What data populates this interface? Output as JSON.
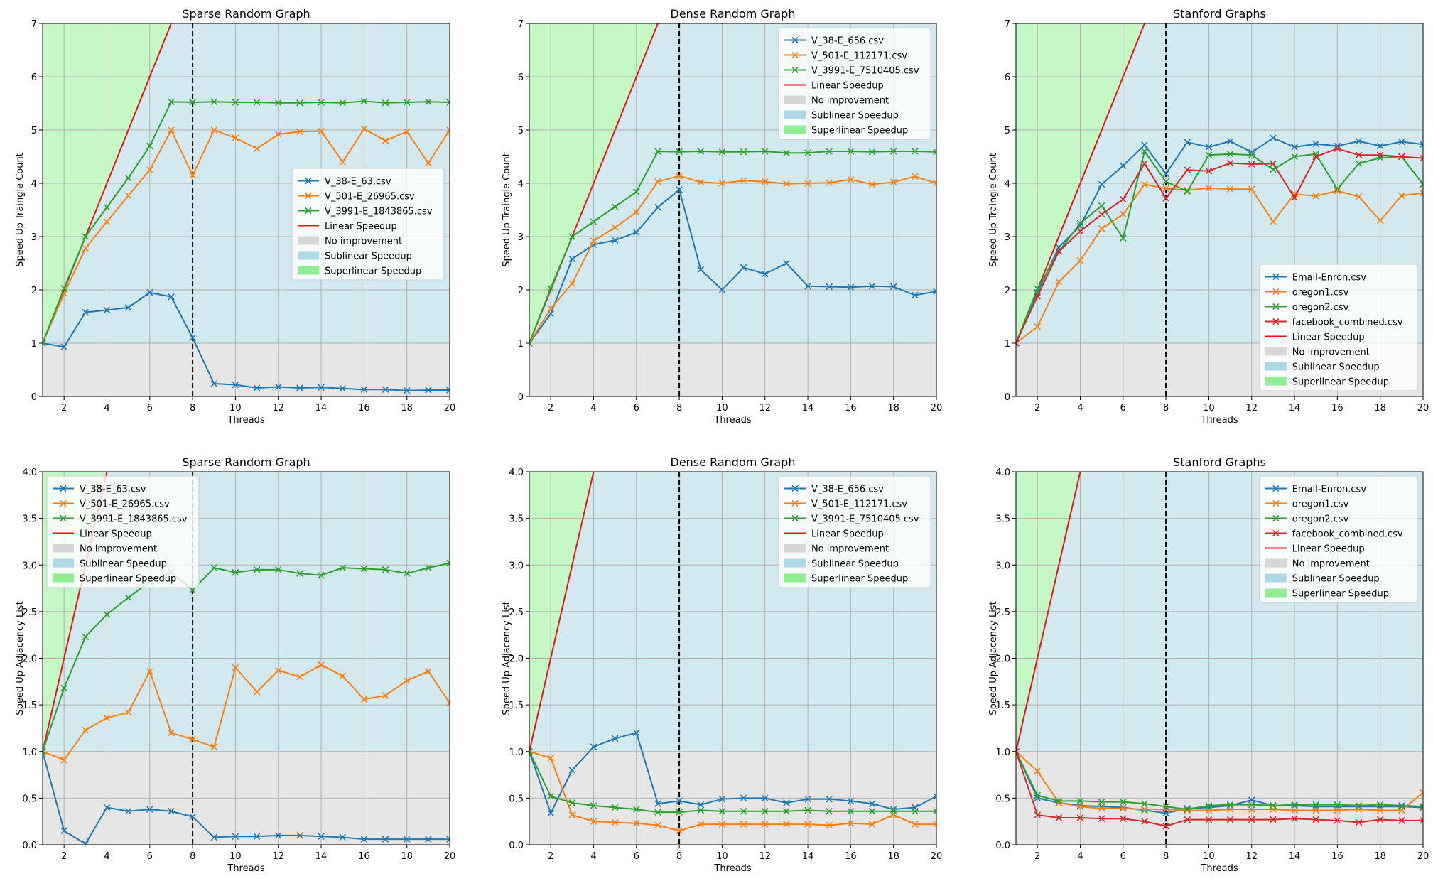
{
  "colors": {
    "c0": "#1f77b4",
    "c1": "#ff7f0e",
    "c2": "#2ca02c",
    "c3": "#d62728",
    "linear": "#e8160e",
    "no_improvement": "#e6e6e6",
    "sublinear": "#d3e9f0",
    "superlinear": "#c6f7c6",
    "grid": "#b0b0b0",
    "vline": "#000000"
  },
  "legend_labels": {
    "linear": "Linear Speedup",
    "no_improvement": "No improvement",
    "sublinear": "Sublinear Speedup",
    "superlinear": "Superlinear Speedup"
  },
  "chart_data": [
    {
      "type": "line",
      "title": "Sparse Random Graph",
      "xlabel": "Threads",
      "ylabel": "Speed Up Traingle Count",
      "xlim": [
        1,
        20
      ],
      "ylim": [
        0,
        7
      ],
      "xticks": [
        2,
        4,
        6,
        8,
        10,
        12,
        14,
        16,
        18,
        20
      ],
      "yticks": [
        0,
        1,
        2,
        3,
        4,
        5,
        6,
        7
      ],
      "ytick_labels": [
        "0",
        "1",
        "2",
        "3",
        "4",
        "5",
        "6",
        "7"
      ],
      "vline_x": 8,
      "legend": "center-right",
      "x": [
        1,
        2,
        3,
        4,
        5,
        6,
        7,
        8,
        9,
        10,
        11,
        12,
        13,
        14,
        15,
        16,
        17,
        18,
        19,
        20
      ],
      "series": [
        {
          "name": "V_38-E_63.csv",
          "values": [
            1.0,
            0.93,
            1.58,
            1.62,
            1.67,
            1.95,
            1.87,
            1.1,
            0.24,
            0.22,
            0.16,
            0.18,
            0.16,
            0.17,
            0.15,
            0.13,
            0.13,
            0.11,
            0.12,
            0.12
          ]
        },
        {
          "name": "V_501-E_26965.csv",
          "values": [
            1.0,
            1.93,
            2.78,
            3.28,
            3.77,
            4.25,
            5.0,
            4.15,
            5.0,
            4.85,
            4.65,
            4.92,
            4.97,
            4.98,
            4.4,
            5.02,
            4.8,
            4.97,
            4.38,
            5.0
          ]
        },
        {
          "name": "V_3991-E_1843865.csv",
          "values": [
            1.0,
            2.03,
            3.0,
            3.55,
            4.1,
            4.7,
            5.53,
            5.52,
            5.53,
            5.52,
            5.52,
            5.51,
            5.51,
            5.52,
            5.51,
            5.54,
            5.51,
            5.52,
            5.53,
            5.52
          ]
        }
      ]
    },
    {
      "type": "line",
      "title": "Dense Random Graph",
      "xlabel": "Threads",
      "ylabel": "Speed Up Traingle Count",
      "xlim": [
        1,
        20
      ],
      "ylim": [
        0,
        7
      ],
      "xticks": [
        2,
        4,
        6,
        8,
        10,
        12,
        14,
        16,
        18,
        20
      ],
      "yticks": [
        0,
        1,
        2,
        3,
        4,
        5,
        6,
        7
      ],
      "ytick_labels": [
        "0",
        "1",
        "2",
        "3",
        "4",
        "5",
        "6",
        "7"
      ],
      "vline_x": 8,
      "legend": "top-right",
      "x": [
        1,
        2,
        3,
        4,
        5,
        6,
        7,
        8,
        9,
        10,
        11,
        12,
        13,
        14,
        15,
        16,
        17,
        18,
        19,
        20
      ],
      "series": [
        {
          "name": "V_38-E_656.csv",
          "values": [
            1.0,
            1.55,
            2.58,
            2.85,
            2.93,
            3.08,
            3.55,
            3.88,
            2.38,
            2.0,
            2.42,
            2.3,
            2.5,
            2.07,
            2.06,
            2.05,
            2.07,
            2.06,
            1.9,
            1.97
          ]
        },
        {
          "name": "V_501-E_112171.csv",
          "values": [
            1.0,
            1.65,
            2.12,
            2.92,
            3.17,
            3.46,
            4.03,
            4.14,
            4.02,
            4.0,
            4.05,
            4.03,
            3.99,
            4.0,
            4.01,
            4.07,
            3.98,
            4.02,
            4.13,
            4.0
          ]
        },
        {
          "name": "V_3991-E_7510405.csv",
          "values": [
            1.0,
            2.03,
            3.0,
            3.28,
            3.56,
            3.84,
            4.6,
            4.59,
            4.6,
            4.59,
            4.59,
            4.6,
            4.57,
            4.57,
            4.6,
            4.6,
            4.59,
            4.6,
            4.6,
            4.59
          ]
        }
      ]
    },
    {
      "type": "line",
      "title": "Stanford Graphs",
      "xlabel": "Threads",
      "ylabel": "Speed Up Traingle Count",
      "xlim": [
        1,
        20
      ],
      "ylim": [
        0,
        7
      ],
      "xticks": [
        2,
        4,
        6,
        8,
        10,
        12,
        14,
        16,
        18,
        20
      ],
      "yticks": [
        0,
        1,
        2,
        3,
        4,
        5,
        6,
        7
      ],
      "ytick_labels": [
        "0",
        "1",
        "2",
        "3",
        "4",
        "5",
        "6",
        "7"
      ],
      "vline_x": 8,
      "legend": "lower-right",
      "x": [
        1,
        2,
        3,
        4,
        5,
        6,
        7,
        8,
        9,
        10,
        11,
        12,
        13,
        14,
        15,
        16,
        17,
        18,
        19,
        20
      ],
      "series": [
        {
          "name": "Email-Enron.csv",
          "values": [
            1.0,
            1.95,
            2.8,
            3.2,
            3.98,
            4.33,
            4.72,
            4.18,
            4.77,
            4.68,
            4.79,
            4.58,
            4.85,
            4.68,
            4.74,
            4.7,
            4.79,
            4.7,
            4.78,
            4.73
          ]
        },
        {
          "name": "oregon1.csv",
          "values": [
            1.0,
            1.31,
            2.15,
            2.55,
            3.15,
            3.42,
            3.98,
            3.9,
            3.87,
            3.91,
            3.89,
            3.89,
            3.28,
            3.8,
            3.76,
            3.86,
            3.75,
            3.3,
            3.77,
            3.82
          ]
        },
        {
          "name": "oregon2.csv",
          "values": [
            1.0,
            2.02,
            2.72,
            3.25,
            3.58,
            2.97,
            4.6,
            4.03,
            3.85,
            4.53,
            4.55,
            4.53,
            4.26,
            4.5,
            4.55,
            3.89,
            4.37,
            4.48,
            4.5,
            3.98
          ]
        },
        {
          "name": "facebook_combined.csv",
          "values": [
            1.0,
            1.88,
            2.72,
            3.1,
            3.42,
            3.7,
            4.37,
            3.72,
            4.25,
            4.23,
            4.38,
            4.36,
            4.37,
            3.73,
            4.5,
            4.65,
            4.53,
            4.53,
            4.5,
            4.47
          ]
        }
      ]
    },
    {
      "type": "line",
      "title": "Sparse Random Graph",
      "xlabel": "Threads",
      "ylabel": "Speed Up Adjacency List",
      "xlim": [
        1,
        20
      ],
      "ylim": [
        0,
        4
      ],
      "xticks": [
        2,
        4,
        6,
        8,
        10,
        12,
        14,
        16,
        18,
        20
      ],
      "yticks": [
        0,
        0.5,
        1,
        1.5,
        2,
        2.5,
        3,
        3.5,
        4
      ],
      "ytick_labels": [
        "0.0",
        "0.5",
        "1.0",
        "1.5",
        "2.0",
        "2.5",
        "3.0",
        "3.5",
        "4.0"
      ],
      "vline_x": 8,
      "legend": "top-left",
      "x": [
        1,
        2,
        3,
        4,
        5,
        6,
        7,
        8,
        9,
        10,
        11,
        12,
        13,
        14,
        15,
        16,
        17,
        18,
        19,
        20
      ],
      "series": [
        {
          "name": "V_38-E_63.csv",
          "values": [
            1.0,
            0.15,
            0.01,
            0.4,
            0.36,
            0.38,
            0.36,
            0.3,
            0.08,
            0.09,
            0.09,
            0.1,
            0.1,
            0.09,
            0.08,
            0.06,
            0.06,
            0.06,
            0.06,
            0.06
          ]
        },
        {
          "name": "V_501-E_26965.csv",
          "values": [
            1.0,
            0.91,
            1.23,
            1.36,
            1.42,
            1.86,
            1.2,
            1.13,
            1.05,
            1.9,
            1.64,
            1.87,
            1.8,
            1.93,
            1.81,
            1.56,
            1.6,
            1.76,
            1.86,
            1.52
          ]
        },
        {
          "name": "V_3991-E_1843865.csv",
          "values": [
            1.0,
            1.68,
            2.23,
            2.47,
            2.65,
            2.82,
            2.92,
            2.73,
            2.97,
            2.92,
            2.95,
            2.95,
            2.91,
            2.89,
            2.97,
            2.96,
            2.95,
            2.91,
            2.97,
            3.02
          ]
        }
      ]
    },
    {
      "type": "line",
      "title": "Dense Random Graph",
      "xlabel": "Threads",
      "ylabel": "Speed Up Adjacency List",
      "xlim": [
        1,
        20
      ],
      "ylim": [
        0,
        4
      ],
      "xticks": [
        2,
        4,
        6,
        8,
        10,
        12,
        14,
        16,
        18,
        20
      ],
      "yticks": [
        0,
        0.5,
        1,
        1.5,
        2,
        2.5,
        3,
        3.5,
        4
      ],
      "ytick_labels": [
        "0.0",
        "0.5",
        "1.0",
        "1.5",
        "2.0",
        "2.5",
        "3.0",
        "3.5",
        "4.0"
      ],
      "vline_x": 8,
      "legend": "top-right",
      "x": [
        1,
        2,
        3,
        4,
        5,
        6,
        7,
        8,
        9,
        10,
        11,
        12,
        13,
        14,
        15,
        16,
        17,
        18,
        19,
        20
      ],
      "series": [
        {
          "name": "V_38-E_656.csv",
          "values": [
            1.0,
            0.34,
            0.8,
            1.05,
            1.14,
            1.2,
            0.44,
            0.47,
            0.43,
            0.49,
            0.5,
            0.5,
            0.45,
            0.49,
            0.49,
            0.47,
            0.44,
            0.38,
            0.4,
            0.52
          ]
        },
        {
          "name": "V_501-E_112171.csv",
          "values": [
            1.0,
            0.93,
            0.32,
            0.25,
            0.24,
            0.23,
            0.21,
            0.15,
            0.22,
            0.22,
            0.22,
            0.22,
            0.22,
            0.22,
            0.21,
            0.23,
            0.22,
            0.32,
            0.22,
            0.22
          ]
        },
        {
          "name": "V_3991-E_7510405.csv",
          "values": [
            1.0,
            0.52,
            0.45,
            0.42,
            0.4,
            0.38,
            0.35,
            0.35,
            0.37,
            0.36,
            0.36,
            0.36,
            0.36,
            0.37,
            0.36,
            0.36,
            0.36,
            0.36,
            0.36,
            0.36
          ]
        }
      ]
    },
    {
      "type": "line",
      "title": "Stanford Graphs",
      "xlabel": "Threads",
      "ylabel": "Speed Up Adjacency List",
      "xlim": [
        1,
        20
      ],
      "ylim": [
        0,
        4
      ],
      "xticks": [
        2,
        4,
        6,
        8,
        10,
        12,
        14,
        16,
        18,
        20
      ],
      "yticks": [
        0,
        0.5,
        1,
        1.5,
        2,
        2.5,
        3,
        3.5,
        4
      ],
      "ytick_labels": [
        "0.0",
        "0.5",
        "1.0",
        "1.5",
        "2.0",
        "2.5",
        "3.0",
        "3.5",
        "4.0"
      ],
      "vline_x": 8,
      "legend": "top-right",
      "x": [
        1,
        2,
        3,
        4,
        5,
        6,
        7,
        8,
        9,
        10,
        11,
        12,
        13,
        14,
        15,
        16,
        17,
        18,
        19,
        20
      ],
      "series": [
        {
          "name": "Email-Enron.csv",
          "values": [
            1.0,
            0.5,
            0.45,
            0.42,
            0.41,
            0.4,
            0.37,
            0.34,
            0.39,
            0.4,
            0.42,
            0.48,
            0.42,
            0.42,
            0.41,
            0.41,
            0.41,
            0.41,
            0.41,
            0.4
          ]
        },
        {
          "name": "oregon1.csv",
          "values": [
            1.0,
            0.79,
            0.45,
            0.41,
            0.39,
            0.39,
            0.38,
            0.38,
            0.37,
            0.37,
            0.38,
            0.38,
            0.38,
            0.37,
            0.37,
            0.37,
            0.38,
            0.37,
            0.37,
            0.56
          ]
        },
        {
          "name": "oregon2.csv",
          "values": [
            1.0,
            0.53,
            0.47,
            0.47,
            0.46,
            0.46,
            0.44,
            0.41,
            0.38,
            0.42,
            0.43,
            0.43,
            0.42,
            0.43,
            0.43,
            0.43,
            0.42,
            0.43,
            0.42,
            0.41
          ]
        },
        {
          "name": "facebook_combined.csv",
          "values": [
            1.0,
            0.32,
            0.29,
            0.29,
            0.28,
            0.28,
            0.25,
            0.2,
            0.27,
            0.27,
            0.27,
            0.27,
            0.27,
            0.28,
            0.27,
            0.26,
            0.24,
            0.27,
            0.26,
            0.26
          ]
        }
      ]
    }
  ]
}
